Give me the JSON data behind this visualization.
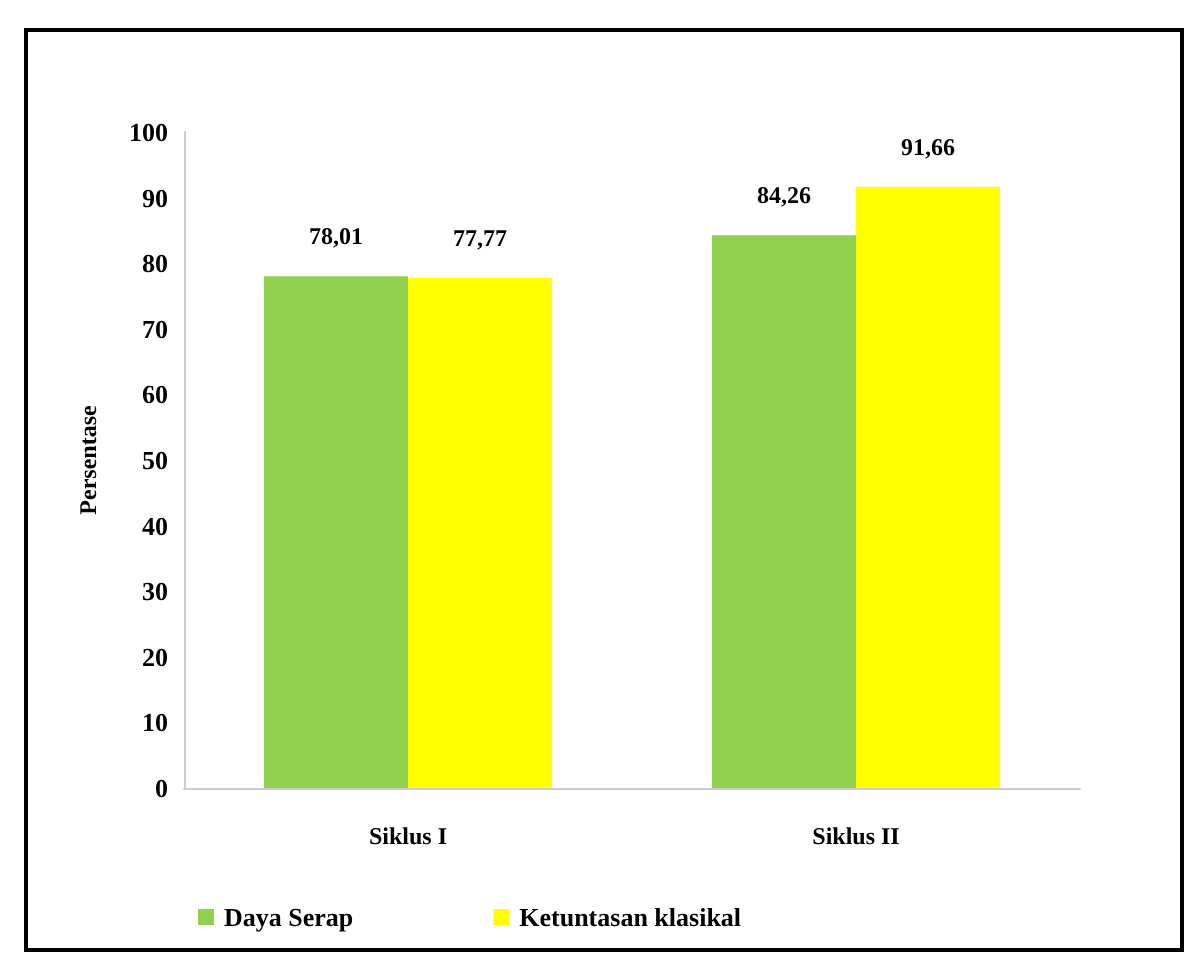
{
  "chart_data": {
    "type": "bar",
    "ylabel": "Persentase",
    "categories": [
      "Siklus I",
      "Siklus II"
    ],
    "series": [
      {
        "name": "Daya Serap",
        "color": "#92d050",
        "values": [
          78.01,
          84.26
        ],
        "value_labels": [
          "78,01",
          "84,26"
        ]
      },
      {
        "name": "Ketuntasan klasikal",
        "color": "#ffff00",
        "values": [
          77.77,
          91.66
        ],
        "value_labels": [
          "77,77",
          "91,66"
        ]
      }
    ],
    "ylim": [
      0,
      100
    ],
    "yticks": [
      0,
      10,
      20,
      30,
      40,
      50,
      60,
      70,
      80,
      90,
      100
    ],
    "grid": false,
    "legend": "bottom"
  }
}
